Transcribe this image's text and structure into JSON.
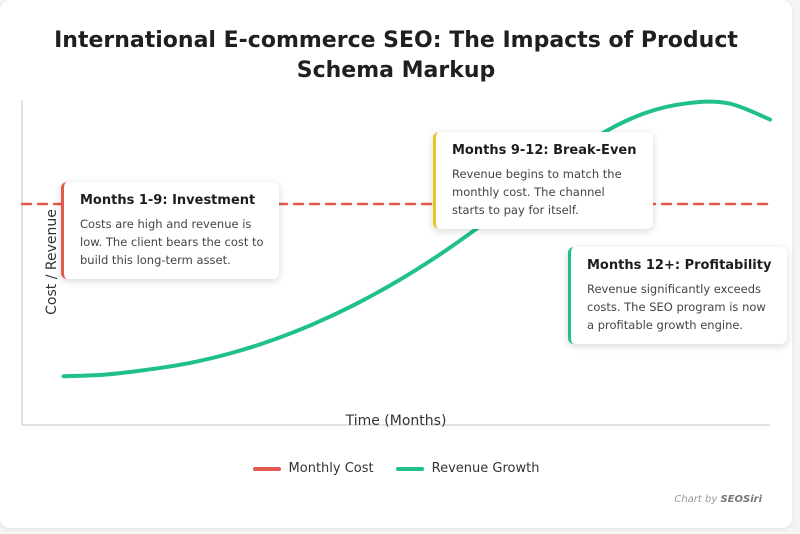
{
  "title": "International E-commerce SEO: The Impacts of Product Schema Markup",
  "colors": {
    "cost": "#e05a4f",
    "revenue": "#1fc08a",
    "yellow": "#e8c62b"
  },
  "chart_data": {
    "type": "line",
    "xlabel": "Time (Months)",
    "ylabel": "Cost / Revenue",
    "xlim": [
      0,
      18
    ],
    "ylim": [
      0,
      100
    ],
    "series": [
      {
        "name": "Monthly Cost",
        "style": "dashed",
        "x": [
          0,
          18
        ],
        "y": [
          68,
          68
        ]
      },
      {
        "name": "Revenue Growth",
        "style": "solid",
        "x": [
          1,
          2,
          3,
          4,
          5,
          6,
          7,
          8,
          9,
          10,
          11,
          12,
          13,
          14,
          15,
          16,
          17,
          18
        ],
        "y": [
          15,
          15.5,
          17,
          19,
          22,
          26,
          31,
          37,
          44,
          52,
          61,
          71,
          81,
          90,
          96,
          99,
          99,
          94
        ]
      }
    ],
    "legend_position": "bottom",
    "annotations": [
      {
        "title": "Months 1-9: Investment",
        "body": "Costs are high and revenue is low. The client bears the cost to build this long-term asset.",
        "color": "#e05a4f"
      },
      {
        "title": "Months 9-12: Break-Even",
        "body": "Revenue begins to match the monthly cost. The channel starts to pay for itself.",
        "color": "#e8c62b"
      },
      {
        "title": "Months 12+: Profitability",
        "body": "Revenue significantly exceeds costs. The SEO program is now a profitable growth engine.",
        "color": "#1fc08a"
      }
    ]
  },
  "credit": {
    "prefix": "Chart by ",
    "brand": "SEOSiri"
  }
}
